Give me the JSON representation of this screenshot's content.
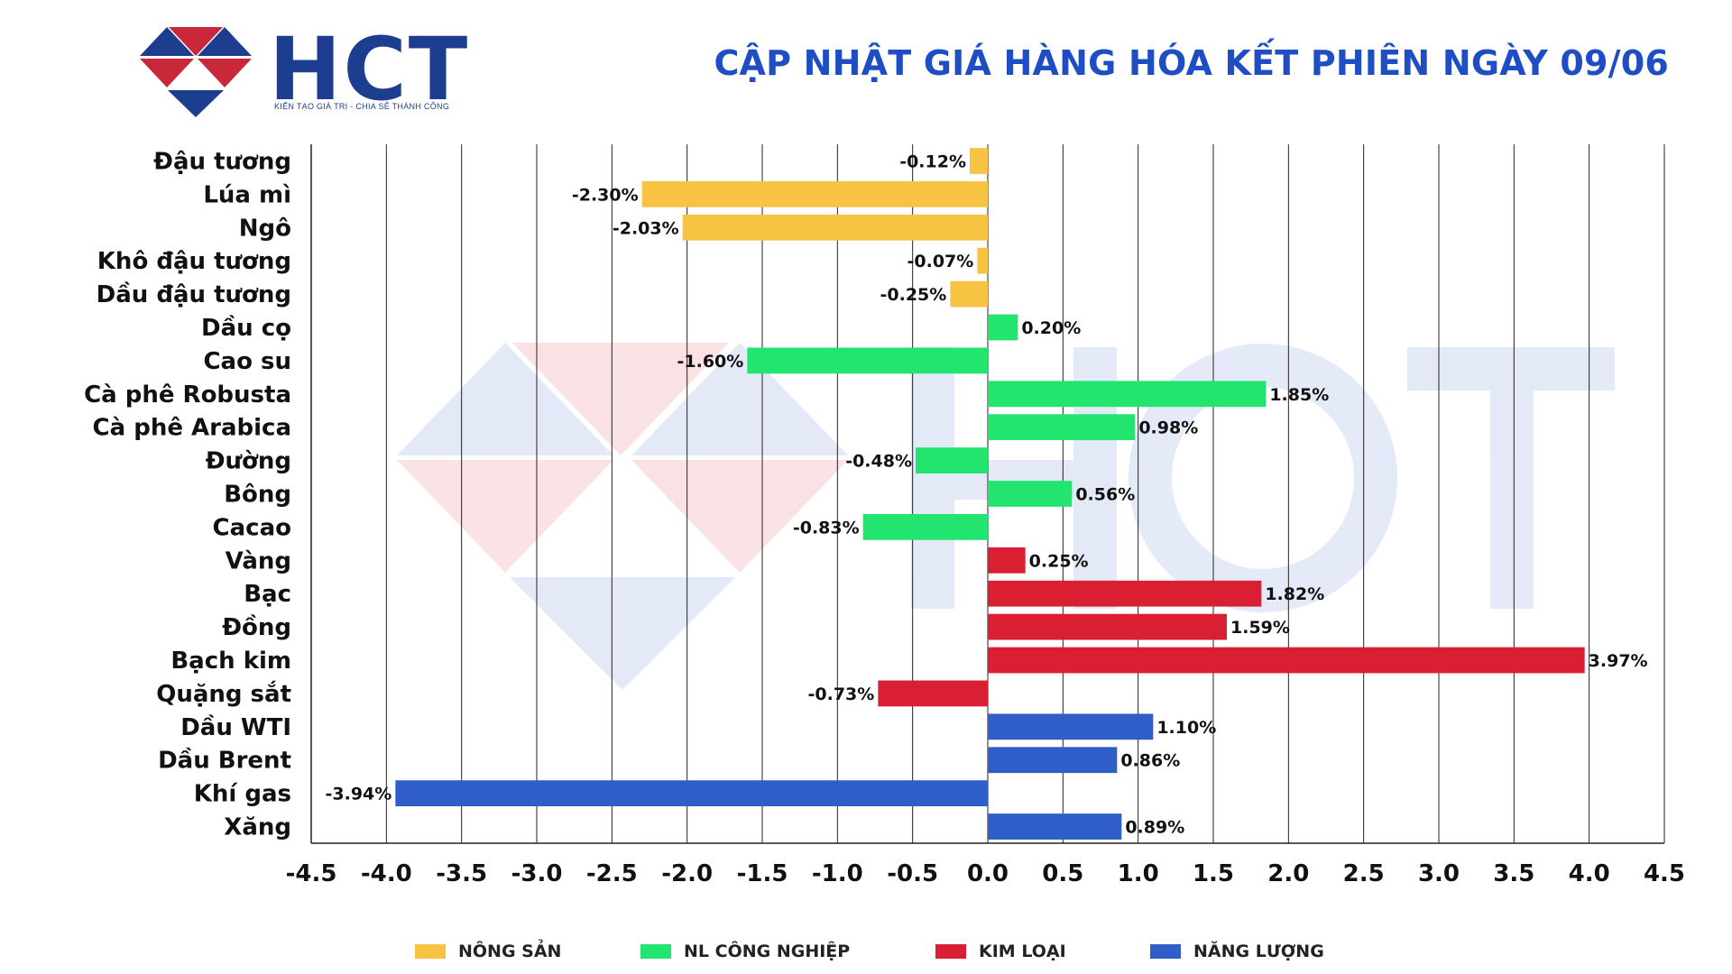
{
  "header": {
    "logo_text": "HCT",
    "logo_tagline": "KIẾN TẠO GIÁ TRỊ - CHIA SẺ THÀNH CÔNG",
    "title": "CẬP NHẬT GIÁ HÀNG HÓA KẾT PHIÊN NGÀY 09/06"
  },
  "colors": {
    "nong_san": "#f7c342",
    "nl_cong_nghiep": "#22e56f",
    "kim_loai": "#da1f33",
    "nang_luong": "#2f5ec8",
    "title": "#1f4ec4",
    "logo_blue": "#1d3e8f",
    "logo_red": "#c8283a"
  },
  "legend": [
    {
      "label": "NÔNG SẢN",
      "group": "nong_san"
    },
    {
      "label": "NL CÔNG NGHIỆP",
      "group": "nl_cong_nghiep"
    },
    {
      "label": "KIM LOẠI",
      "group": "kim_loai"
    },
    {
      "label": "NĂNG LƯỢNG",
      "group": "nang_luong"
    }
  ],
  "chart_data": {
    "type": "bar",
    "orientation": "horizontal",
    "title": "CẬP NHẬT GIÁ HÀNG HÓA KẾT PHIÊN NGÀY 09/06",
    "xlabel": "",
    "ylabel": "",
    "xlim": [
      -4.5,
      4.5
    ],
    "xticks": [
      "-4.5",
      "-4.0",
      "-3.5",
      "-3.0",
      "-2.5",
      "-2.0",
      "-1.5",
      "-1.0",
      "-0.5",
      "0.0",
      "0.5",
      "1.0",
      "1.5",
      "2.0",
      "2.5",
      "3.0",
      "3.5",
      "4.0",
      "4.5"
    ],
    "xtick_values": [
      -4.5,
      -4.0,
      -3.5,
      -3.0,
      -2.5,
      -2.0,
      -1.5,
      -1.0,
      -0.5,
      0.0,
      0.5,
      1.0,
      1.5,
      2.0,
      2.5,
      3.0,
      3.5,
      4.0,
      4.5
    ],
    "grid": "vertical",
    "legend_position": "bottom",
    "categories": [
      "Đậu tương",
      "Lúa mì",
      "Ngô",
      "Khô đậu tương",
      "Dầu đậu tương",
      "Dầu cọ",
      "Cao su",
      "Cà phê Robusta",
      "Cà phê Arabica",
      "Đường",
      "Bông",
      "Cacao",
      "Vàng",
      "Bạc",
      "Đồng",
      "Bạch kim",
      "Quặng sắt",
      "Dầu WTI",
      "Dầu Brent",
      "Khí gas",
      "Xăng"
    ],
    "values": [
      -0.12,
      -2.3,
      -2.03,
      -0.07,
      -0.25,
      0.2,
      -1.6,
      1.85,
      0.98,
      -0.48,
      0.56,
      -0.83,
      0.25,
      1.82,
      1.59,
      3.97,
      -0.73,
      1.1,
      0.86,
      -3.94,
      0.89
    ],
    "value_labels": [
      "-0.12%",
      "-2.30%",
      "-2.03%",
      "-0.07%",
      "-0.25%",
      "0.20%",
      "-1.60%",
      "1.85%",
      "0.98%",
      "-0.48%",
      "0.56%",
      "-0.83%",
      "0.25%",
      "1.82%",
      "1.59%",
      "3.97%",
      "-0.73%",
      "1.10%",
      "0.86%",
      "-3.94%",
      "0.89%"
    ],
    "groups": [
      "nong_san",
      "nong_san",
      "nong_san",
      "nong_san",
      "nong_san",
      "nl_cong_nghiep",
      "nl_cong_nghiep",
      "nl_cong_nghiep",
      "nl_cong_nghiep",
      "nl_cong_nghiep",
      "nl_cong_nghiep",
      "nl_cong_nghiep",
      "kim_loai",
      "kim_loai",
      "kim_loai",
      "kim_loai",
      "kim_loai",
      "nang_luong",
      "nang_luong",
      "nang_luong",
      "nang_luong"
    ]
  }
}
